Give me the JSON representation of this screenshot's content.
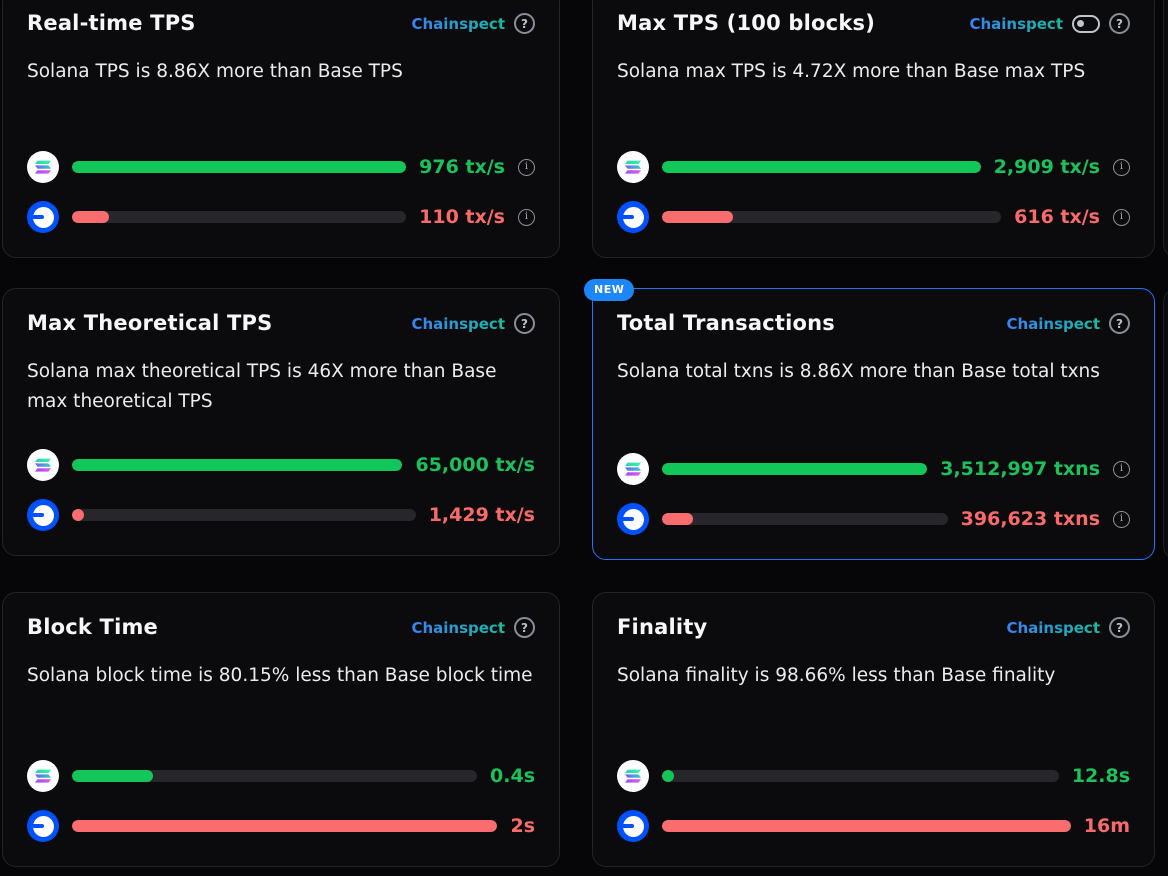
{
  "icons": {
    "help": "?",
    "info": "i",
    "toggle": "toggle-off",
    "solana": "solana-logo",
    "base": "base-logo"
  },
  "colors": {
    "background": "#060608",
    "card_bg": "#0b0b0e",
    "card_border": "#232329",
    "highlight_border": "#2574f4",
    "badge_bg": "#1d86f8",
    "green": "#13c65a",
    "red": "#fa6d6e",
    "track": "#26262b",
    "chainspect_gradient_start": "#3b82f6",
    "chainspect_gradient_end": "#16bca0"
  },
  "cards": [
    {
      "title": "Real-time TPS",
      "source_label": "Chainspect",
      "description": "Solana TPS is 8.86X more than Base TPS",
      "rows": [
        {
          "chain": "Solana",
          "value": "976 tx/s",
          "fill_pct": 100
        },
        {
          "chain": "Base",
          "value": "110 tx/s",
          "fill_pct": 11
        }
      ]
    },
    {
      "title": "Max TPS (100 blocks)",
      "source_label": "Chainspect",
      "description": "Solana max TPS is 4.72X more than Base max TPS",
      "rows": [
        {
          "chain": "Solana",
          "value": "2,909 tx/s",
          "fill_pct": 100
        },
        {
          "chain": "Base",
          "value": "616 tx/s",
          "fill_pct": 21
        }
      ]
    },
    {
      "title": "Max Theoretical TPS",
      "source_label": "Chainspect",
      "description": "Solana max theoretical TPS is 46X more than Base max theoretical TPS",
      "rows": [
        {
          "chain": "Solana",
          "value": "65,000 tx/s",
          "fill_pct": 100
        },
        {
          "chain": "Base",
          "value": "1,429 tx/s",
          "fill_pct": 3
        }
      ]
    },
    {
      "title": "Total Transactions",
      "source_label": "Chainspect",
      "badge": "NEW",
      "description": "Solana total txns is 8.86X more than Base total txns",
      "rows": [
        {
          "chain": "Solana",
          "value": "3,512,997 txns",
          "fill_pct": 100
        },
        {
          "chain": "Base",
          "value": "396,623 txns",
          "fill_pct": 11
        }
      ]
    },
    {
      "title": "Block Time",
      "source_label": "Chainspect",
      "description": "Solana block time is 80.15% less than Base block time",
      "rows": [
        {
          "chain": "Solana",
          "value": "0.4s",
          "fill_pct": 20
        },
        {
          "chain": "Base",
          "value": "2s",
          "fill_pct": 100
        }
      ]
    },
    {
      "title": "Finality",
      "source_label": "Chainspect",
      "description": "Solana finality is 98.66% less than Base finality",
      "rows": [
        {
          "chain": "Solana",
          "value": "12.8s",
          "fill_pct": 3
        },
        {
          "chain": "Base",
          "value": "16m",
          "fill_pct": 100
        }
      ]
    }
  ]
}
